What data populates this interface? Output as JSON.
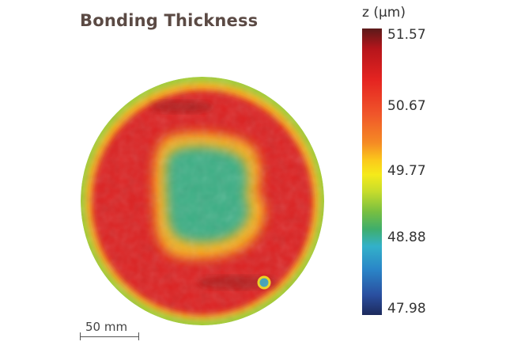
{
  "chart_data": {
    "type": "heatmap",
    "title": "Bonding Thickness",
    "colorbar": {
      "label": "z (µm)",
      "min": 47.98,
      "max": 51.57,
      "ticks": [
        "51.57",
        "50.67",
        "49.77",
        "48.88",
        "47.98"
      ]
    },
    "regions": [
      {
        "name": "outer rim",
        "value": 49.4
      },
      {
        "name": "thick ring",
        "value": 51.0
      },
      {
        "name": "transition",
        "value": 50.0
      },
      {
        "name": "center",
        "value": 49.0
      }
    ],
    "scale_bar": "50 mm"
  }
}
